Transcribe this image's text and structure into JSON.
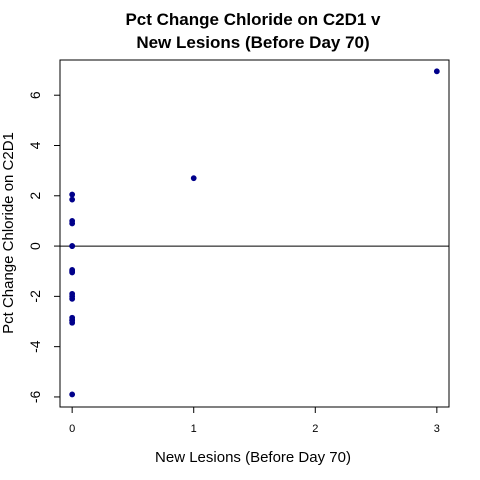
{
  "chart_data": {
    "type": "scatter",
    "title_lines": [
      "Pct Change Chloride on C2D1 v",
      "New Lesions (Before Day 70)"
    ],
    "xlabel": "New Lesions (Before Day 70)",
    "ylabel": "Pct Change Chloride on C2D1",
    "xlim": [
      -0.1,
      3.1
    ],
    "ylim": [
      -6.4,
      7.4
    ],
    "x_ticks": [
      0,
      1,
      2,
      3
    ],
    "x_tick_labels": [
      "0",
      "1",
      "2",
      "3"
    ],
    "y_ticks": [
      -6,
      -4,
      -2,
      0,
      2,
      4,
      6
    ],
    "y_tick_labels": [
      "-6",
      "-4",
      "-2",
      "0",
      "2",
      "4",
      "6"
    ],
    "reference_line_y": 0,
    "grid": false,
    "legend": "none",
    "point_color": "#00008B",
    "x": [
      0,
      0,
      0,
      0,
      0,
      0,
      0,
      0,
      0,
      0,
      0,
      0,
      0,
      0,
      0,
      0,
      0,
      1,
      3
    ],
    "y": [
      2.05,
      1.85,
      1.0,
      0.9,
      0.0,
      -0.95,
      -1.05,
      -1.9,
      -2.0,
      -2.1,
      -2.85,
      -2.95,
      -3.05,
      -5.9,
      0.0,
      -1.0,
      -2.95,
      2.7,
      6.95
    ]
  }
}
